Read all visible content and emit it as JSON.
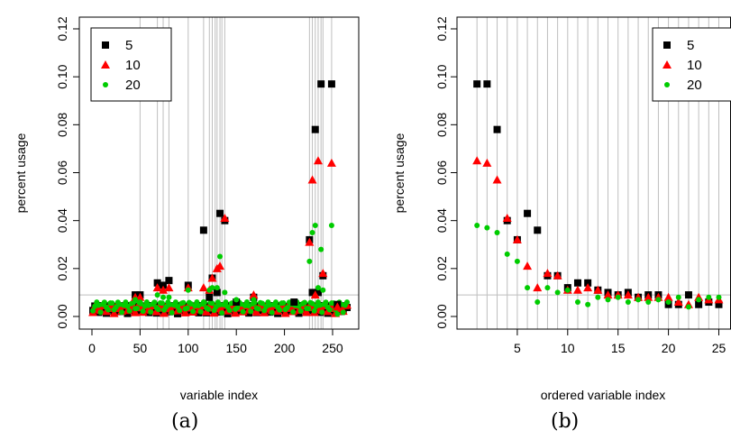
{
  "captions": {
    "a": "(a)",
    "b": "(b)"
  },
  "colors": {
    "s5": "#000000",
    "s10": "#ff0000",
    "s20": "#00cc00",
    "vline": "#bebebe",
    "hline": "#bebebe"
  },
  "chart_data": [
    {
      "type": "scatter",
      "panel": "a",
      "xlabel": "variable index",
      "ylabel": "percent usage",
      "xlim": [
        0,
        265
      ],
      "ylim": [
        0,
        0.12
      ],
      "xticks": [
        0,
        50,
        100,
        150,
        200,
        250
      ],
      "yticks": [
        0.0,
        0.02,
        0.04,
        0.06,
        0.08,
        0.1,
        0.12
      ],
      "ytick_labels": [
        "0.00",
        "0.02",
        "0.04",
        "0.06",
        "0.08",
        "0.10",
        "0.12"
      ],
      "legend": {
        "position": "top-left",
        "entries": [
          "5",
          "10",
          "20"
        ]
      },
      "hline": 0.009,
      "vlines": [
        50,
        68,
        74,
        80,
        100,
        116,
        122,
        125,
        128,
        130,
        133,
        135,
        138,
        226,
        229,
        232,
        235,
        238,
        240,
        249
      ],
      "baseline": {
        "x_range": [
          1,
          265
        ],
        "series": [
          {
            "name": "5",
            "y_min": 0.0,
            "y_max": 0.0045
          },
          {
            "name": "10",
            "y_min": 0.0,
            "y_max": 0.005
          },
          {
            "name": "20",
            "y_min": 0.0,
            "y_max": 0.006
          }
        ]
      },
      "series": [
        {
          "name": "5",
          "marker": "square",
          "points": [
            [
              45,
              0.009
            ],
            [
              50,
              0.009
            ],
            [
              68,
              0.014
            ],
            [
              74,
              0.013
            ],
            [
              80,
              0.015
            ],
            [
              100,
              0.013
            ],
            [
              116,
              0.036
            ],
            [
              122,
              0.008
            ],
            [
              125,
              0.016
            ],
            [
              130,
              0.01
            ],
            [
              133,
              0.043
            ],
            [
              138,
              0.04
            ],
            [
              150,
              0.006
            ],
            [
              168,
              0.008
            ],
            [
              210,
              0.006
            ],
            [
              226,
              0.032
            ],
            [
              229,
              0.01
            ],
            [
              232,
              0.078
            ],
            [
              235,
              0.01
            ],
            [
              238,
              0.097
            ],
            [
              240,
              0.017
            ],
            [
              249,
              0.097
            ],
            [
              255,
              0.005
            ]
          ]
        },
        {
          "name": "10",
          "marker": "triangle",
          "points": [
            [
              45,
              0.008
            ],
            [
              50,
              0.008
            ],
            [
              68,
              0.012
            ],
            [
              74,
              0.011
            ],
            [
              80,
              0.012
            ],
            [
              100,
              0.012
            ],
            [
              116,
              0.012
            ],
            [
              122,
              0.011
            ],
            [
              125,
              0.016
            ],
            [
              130,
              0.02
            ],
            [
              133,
              0.021
            ],
            [
              138,
              0.041
            ],
            [
              168,
              0.009
            ],
            [
              226,
              0.031
            ],
            [
              229,
              0.057
            ],
            [
              232,
              0.009
            ],
            [
              235,
              0.065
            ],
            [
              240,
              0.018
            ],
            [
              249,
              0.064
            ],
            [
              255,
              0.004
            ]
          ]
        },
        {
          "name": "20",
          "marker": "circle",
          "points": [
            [
              45,
              0.007
            ],
            [
              50,
              0.006
            ],
            [
              68,
              0.009
            ],
            [
              74,
              0.008
            ],
            [
              80,
              0.008
            ],
            [
              100,
              0.011
            ],
            [
              116,
              0.006
            ],
            [
              122,
              0.011
            ],
            [
              125,
              0.012
            ],
            [
              130,
              0.012
            ],
            [
              133,
              0.025
            ],
            [
              138,
              0.01
            ],
            [
              150,
              0.007
            ],
            [
              168,
              0.007
            ],
            [
              226,
              0.023
            ],
            [
              229,
              0.035
            ],
            [
              232,
              0.038
            ],
            [
              235,
              0.012
            ],
            [
              238,
              0.028
            ],
            [
              240,
              0.011
            ],
            [
              249,
              0.038
            ],
            [
              255,
              0.001
            ]
          ]
        }
      ]
    },
    {
      "type": "scatter",
      "panel": "b",
      "xlabel": "ordered variable index",
      "ylabel": "percent usage",
      "xlim": [
        0,
        25
      ],
      "ylim": [
        0,
        0.12
      ],
      "xticks": [
        5,
        10,
        15,
        20,
        25
      ],
      "yticks": [
        0.0,
        0.02,
        0.04,
        0.06,
        0.08,
        0.1,
        0.12
      ],
      "ytick_labels": [
        "0.00",
        "0.02",
        "0.04",
        "0.06",
        "0.08",
        "0.10",
        "0.12"
      ],
      "legend": {
        "position": "top-right",
        "entries": [
          "5",
          "10",
          "20"
        ]
      },
      "hline": 0.009,
      "vlines": [
        1,
        2,
        3,
        4,
        5,
        6,
        7,
        8,
        9,
        10,
        11,
        12,
        13,
        14,
        15,
        16,
        17,
        18,
        19,
        20,
        21,
        22,
        23,
        24,
        25
      ],
      "series": [
        {
          "name": "5",
          "marker": "square",
          "points": [
            [
              1,
              0.097
            ],
            [
              2,
              0.097
            ],
            [
              3,
              0.078
            ],
            [
              4,
              0.04
            ],
            [
              5,
              0.032
            ],
            [
              6,
              0.043
            ],
            [
              7,
              0.036
            ],
            [
              8,
              0.017
            ],
            [
              9,
              0.017
            ],
            [
              10,
              0.012
            ],
            [
              11,
              0.014
            ],
            [
              12,
              0.014
            ],
            [
              13,
              0.011
            ],
            [
              14,
              0.01
            ],
            [
              15,
              0.009
            ],
            [
              16,
              0.01
            ],
            [
              17,
              0.008
            ],
            [
              18,
              0.009
            ],
            [
              19,
              0.009
            ],
            [
              20,
              0.005
            ],
            [
              21,
              0.005
            ],
            [
              22,
              0.009
            ],
            [
              23,
              0.005
            ],
            [
              24,
              0.006
            ],
            [
              25,
              0.005
            ]
          ]
        },
        {
          "name": "10",
          "marker": "triangle",
          "points": [
            [
              1,
              0.065
            ],
            [
              2,
              0.064
            ],
            [
              3,
              0.057
            ],
            [
              4,
              0.041
            ],
            [
              5,
              0.032
            ],
            [
              6,
              0.021
            ],
            [
              7,
              0.012
            ],
            [
              8,
              0.018
            ],
            [
              9,
              0.017
            ],
            [
              10,
              0.011
            ],
            [
              11,
              0.011
            ],
            [
              12,
              0.012
            ],
            [
              13,
              0.011
            ],
            [
              14,
              0.009
            ],
            [
              15,
              0.009
            ],
            [
              16,
              0.009
            ],
            [
              17,
              0.008
            ],
            [
              18,
              0.008
            ],
            [
              19,
              0.008
            ],
            [
              20,
              0.008
            ],
            [
              21,
              0.006
            ],
            [
              22,
              0.005
            ],
            [
              23,
              0.008
            ],
            [
              24,
              0.007
            ],
            [
              25,
              0.007
            ]
          ]
        },
        {
          "name": "20",
          "marker": "circle",
          "points": [
            [
              1,
              0.038
            ],
            [
              2,
              0.037
            ],
            [
              3,
              0.035
            ],
            [
              4,
              0.026
            ],
            [
              5,
              0.023
            ],
            [
              6,
              0.012
            ],
            [
              7,
              0.006
            ],
            [
              8,
              0.012
            ],
            [
              9,
              0.01
            ],
            [
              10,
              0.011
            ],
            [
              11,
              0.006
            ],
            [
              12,
              0.005
            ],
            [
              13,
              0.008
            ],
            [
              14,
              0.007
            ],
            [
              15,
              0.008
            ],
            [
              16,
              0.006
            ],
            [
              17,
              0.007
            ],
            [
              18,
              0.006
            ],
            [
              19,
              0.007
            ],
            [
              20,
              0.006
            ],
            [
              21,
              0.008
            ],
            [
              22,
              0.004
            ],
            [
              23,
              0.007
            ],
            [
              24,
              0.008
            ],
            [
              25,
              0.008
            ]
          ]
        }
      ]
    }
  ]
}
